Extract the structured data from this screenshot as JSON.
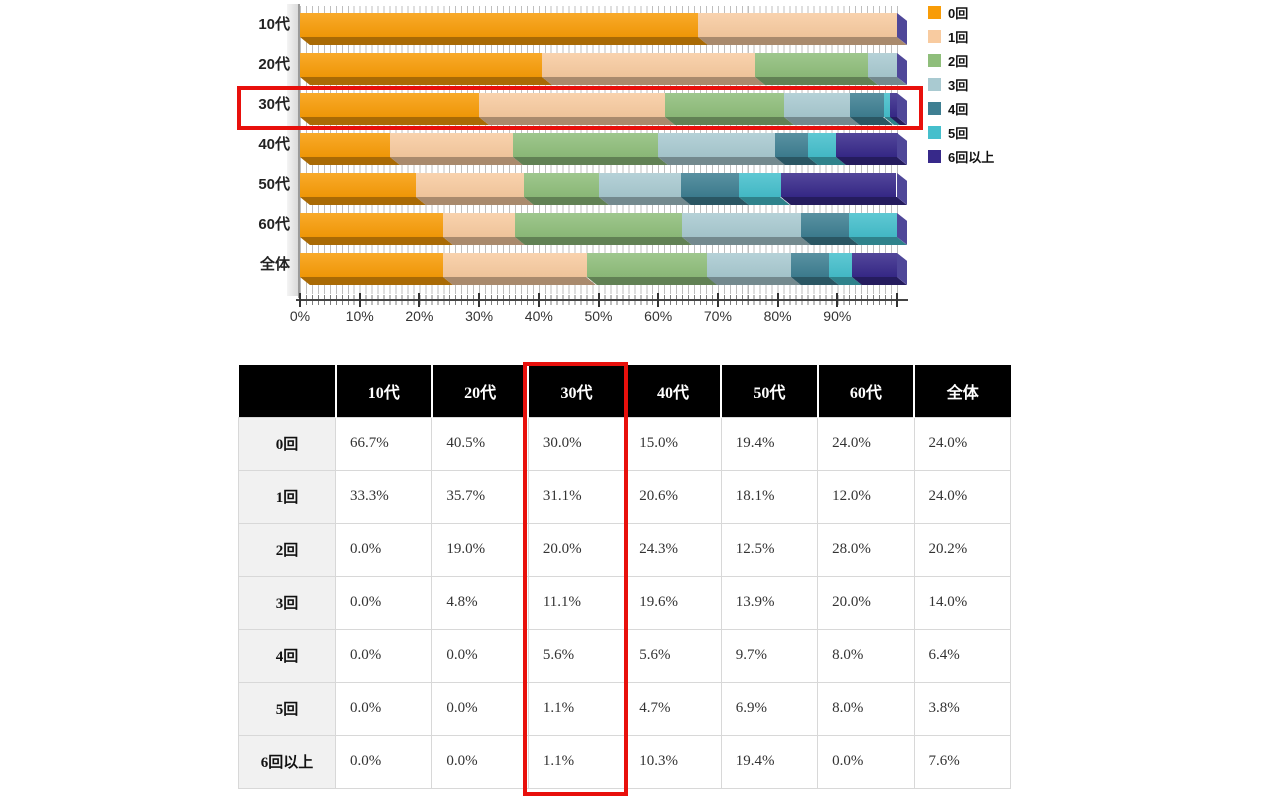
{
  "chart": {
    "legend": [
      {
        "label": "0回",
        "color": "#F89C07"
      },
      {
        "label": "1回",
        "color": "#F8CBA0"
      },
      {
        "label": "2回",
        "color": "#8FBE7B"
      },
      {
        "label": "3回",
        "color": "#A9CAD1"
      },
      {
        "label": "4回",
        "color": "#3E7F92"
      },
      {
        "label": "5回",
        "color": "#45BFCC"
      },
      {
        "label": "6回以上",
        "color": "#37298A"
      }
    ],
    "axis_ticks": [
      "0%",
      "10%",
      "20%",
      "30%",
      "40%",
      "50%",
      "60%",
      "70%",
      "80%",
      "90%"
    ],
    "end_cap_color": "#4F4799"
  },
  "chart_data": {
    "type": "bar",
    "stacked": true,
    "orientation": "horizontal",
    "categories": [
      "10代",
      "20代",
      "30代",
      "40代",
      "50代",
      "60代",
      "全体"
    ],
    "series": [
      {
        "name": "0回",
        "color": "#F89C07",
        "values": [
          66.7,
          40.5,
          30.0,
          15.0,
          19.4,
          24.0,
          24.0
        ]
      },
      {
        "name": "1回",
        "color": "#F8CBA0",
        "values": [
          33.3,
          35.7,
          31.1,
          20.6,
          18.1,
          12.0,
          24.0
        ]
      },
      {
        "name": "2回",
        "color": "#8FBE7B",
        "values": [
          0.0,
          19.0,
          20.0,
          24.3,
          12.5,
          28.0,
          20.2
        ]
      },
      {
        "name": "3回",
        "color": "#A9CAD1",
        "values": [
          0.0,
          4.8,
          11.1,
          19.6,
          13.9,
          20.0,
          14.0
        ]
      },
      {
        "name": "4回",
        "color": "#3E7F92",
        "values": [
          0.0,
          0.0,
          5.6,
          5.6,
          9.7,
          8.0,
          6.4
        ]
      },
      {
        "name": "5回",
        "color": "#45BFCC",
        "values": [
          0.0,
          0.0,
          1.1,
          4.7,
          6.9,
          8.0,
          3.8
        ]
      },
      {
        "name": "6回以上",
        "color": "#37298A",
        "values": [
          0.0,
          0.0,
          1.1,
          10.3,
          19.4,
          0.0,
          7.6
        ]
      }
    ],
    "xlim": [
      0,
      100
    ],
    "x_unit": "%",
    "grid": true,
    "legend_position": "right",
    "highlighted_category": "30代"
  },
  "table": {
    "columns": [
      "",
      "10代",
      "20代",
      "30代",
      "40代",
      "50代",
      "60代",
      "全体"
    ],
    "rows": [
      {
        "label": "0回",
        "values": [
          "66.7%",
          "40.5%",
          "30.0%",
          "15.0%",
          "19.4%",
          "24.0%",
          "24.0%"
        ]
      },
      {
        "label": "1回",
        "values": [
          "33.3%",
          "35.7%",
          "31.1%",
          "20.6%",
          "18.1%",
          "12.0%",
          "24.0%"
        ]
      },
      {
        "label": "2回",
        "values": [
          "0.0%",
          "19.0%",
          "20.0%",
          "24.3%",
          "12.5%",
          "28.0%",
          "20.2%"
        ]
      },
      {
        "label": "3回",
        "values": [
          "0.0%",
          "4.8%",
          "11.1%",
          "19.6%",
          "13.9%",
          "20.0%",
          "14.0%"
        ]
      },
      {
        "label": "4回",
        "values": [
          "0.0%",
          "0.0%",
          "5.6%",
          "5.6%",
          "9.7%",
          "8.0%",
          "6.4%"
        ]
      },
      {
        "label": "5回",
        "values": [
          "0.0%",
          "0.0%",
          "1.1%",
          "4.7%",
          "6.9%",
          "8.0%",
          "3.8%"
        ]
      },
      {
        "label": "6回以上",
        "values": [
          "0.0%",
          "0.0%",
          "1.1%",
          "10.3%",
          "19.4%",
          "0.0%",
          "7.6%"
        ]
      }
    ],
    "highlighted_column": "30代"
  },
  "highlight_color": "#E8100C"
}
